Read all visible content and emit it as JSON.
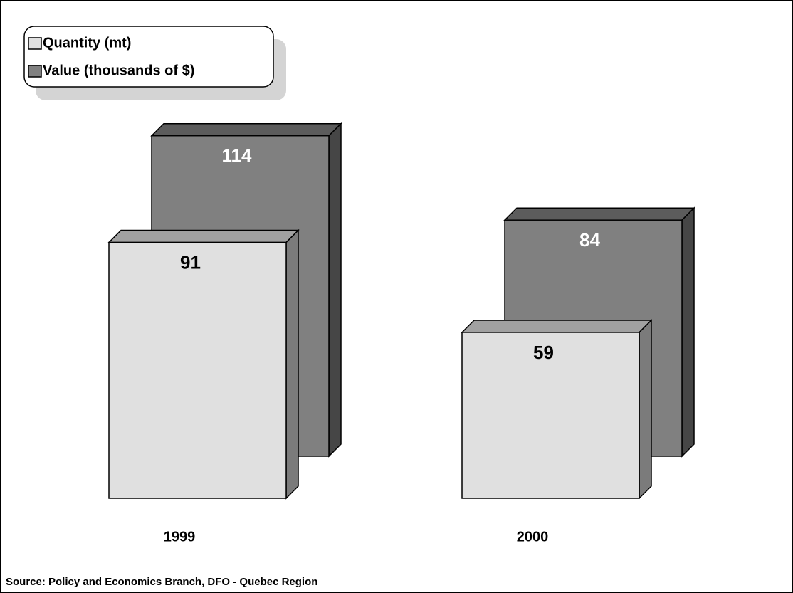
{
  "chart_data": {
    "type": "bar3d",
    "categories": [
      "1999",
      "2000"
    ],
    "series": [
      {
        "name": "Quantity (mt)",
        "color": "#e0e0e0",
        "values": [
          91,
          59
        ]
      },
      {
        "name": "Value (thousands of $)",
        "color": "#808080",
        "values": [
          114,
          84
        ]
      }
    ],
    "legend": "top-left",
    "annotation": "Source:  Policy and Economics Branch, DFO - Quebec Region"
  }
}
